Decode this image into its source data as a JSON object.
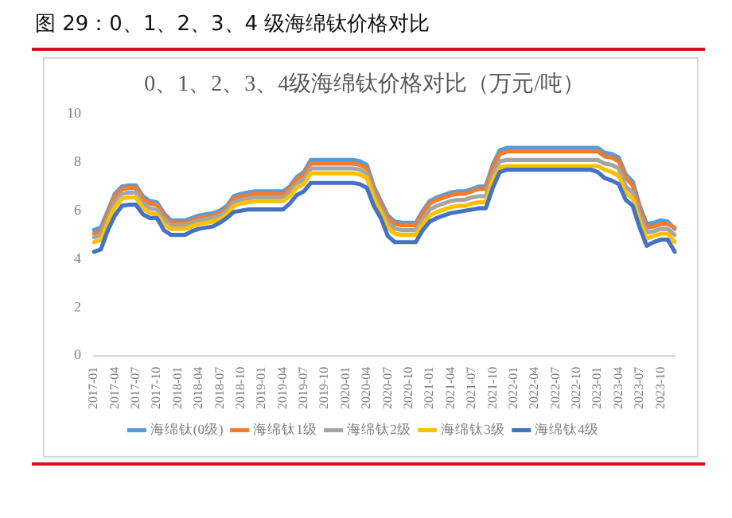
{
  "chart_data": {
    "type": "line",
    "title": "0、1、2、3、4级海绵钛价格对比（万元/吨）",
    "annotations": [
      "图 29：0、1、2、3、4 级海绵钛价格对比"
    ],
    "categories": [
      "2017-01",
      null,
      null,
      "2017-04",
      null,
      null,
      "2017-07",
      null,
      null,
      "2017-10",
      null,
      null,
      "2018-01",
      null,
      null,
      "2018-04",
      null,
      null,
      "2018-07",
      null,
      null,
      "2018-10",
      null,
      null,
      "2019-01",
      null,
      null,
      "2019-04",
      null,
      null,
      "2019-07",
      null,
      null,
      "2019-10",
      null,
      null,
      "2020-01",
      null,
      null,
      "2020-04",
      null,
      null,
      "2020-07",
      null,
      null,
      "2020-10",
      null,
      null,
      "2021-01",
      null,
      null,
      "2021-04",
      null,
      null,
      "2021-07",
      null,
      null,
      "2021-10",
      null,
      null,
      "2022-01",
      null,
      null,
      "2022-04",
      null,
      null,
      "2022-07",
      null,
      null,
      "2022-10",
      null,
      null,
      "2023-01",
      null,
      null,
      "2023-04",
      null,
      null,
      "2023-07",
      null,
      null,
      "2023-10",
      null,
      null
    ],
    "series": [
      {
        "name": "海绵钛(0级)",
        "color": "#5b9bd5",
        "values": [
          5.2,
          5.3,
          6.0,
          6.7,
          7.0,
          7.05,
          7.05,
          6.6,
          6.4,
          6.35,
          5.9,
          5.6,
          5.6,
          5.6,
          5.7,
          5.8,
          5.85,
          5.9,
          6.0,
          6.2,
          6.6,
          6.7,
          6.75,
          6.8,
          6.8,
          6.8,
          6.8,
          6.8,
          7.0,
          7.4,
          7.6,
          8.1,
          8.1,
          8.1,
          8.1,
          8.1,
          8.1,
          8.1,
          8.05,
          7.9,
          7.0,
          6.4,
          5.8,
          5.55,
          5.5,
          5.5,
          5.5,
          6.0,
          6.4,
          6.55,
          6.65,
          6.75,
          6.8,
          6.8,
          6.9,
          7.0,
          7.0,
          7.9,
          8.5,
          8.6,
          8.6,
          8.6,
          8.6,
          8.6,
          8.6,
          8.6,
          8.6,
          8.6,
          8.6,
          8.6,
          8.6,
          8.6,
          8.6,
          8.4,
          8.35,
          8.2,
          7.5,
          7.2,
          6.2,
          5.45,
          5.5,
          5.6,
          5.55,
          5.25
        ]
      },
      {
        "name": "海绵钛1级",
        "color": "#ed7d31",
        "values": [
          5.05,
          5.15,
          5.9,
          6.6,
          6.9,
          6.95,
          6.95,
          6.5,
          6.3,
          6.25,
          5.8,
          5.5,
          5.5,
          5.5,
          5.6,
          5.7,
          5.75,
          5.8,
          5.9,
          6.1,
          6.5,
          6.6,
          6.65,
          6.7,
          6.7,
          6.7,
          6.7,
          6.7,
          6.9,
          7.3,
          7.5,
          7.95,
          7.95,
          7.95,
          7.95,
          7.95,
          7.95,
          7.95,
          7.9,
          7.75,
          6.9,
          6.3,
          5.7,
          5.45,
          5.4,
          5.4,
          5.4,
          5.9,
          6.3,
          6.45,
          6.55,
          6.65,
          6.7,
          6.7,
          6.8,
          6.9,
          6.9,
          7.8,
          8.35,
          8.45,
          8.45,
          8.45,
          8.45,
          8.45,
          8.45,
          8.45,
          8.45,
          8.45,
          8.45,
          8.45,
          8.45,
          8.45,
          8.45,
          8.25,
          8.2,
          8.05,
          7.35,
          7.05,
          6.05,
          5.3,
          5.35,
          5.45,
          5.45,
          5.3
        ]
      },
      {
        "name": "海绵钛2级",
        "color": "#a5a5a5",
        "values": [
          4.9,
          5.0,
          5.7,
          6.4,
          6.7,
          6.75,
          6.75,
          6.3,
          6.1,
          6.05,
          5.65,
          5.4,
          5.4,
          5.4,
          5.5,
          5.6,
          5.65,
          5.7,
          5.8,
          6.0,
          6.35,
          6.45,
          6.5,
          6.55,
          6.55,
          6.55,
          6.55,
          6.55,
          6.75,
          7.1,
          7.3,
          7.75,
          7.75,
          7.75,
          7.75,
          7.75,
          7.75,
          7.75,
          7.7,
          7.55,
          6.7,
          6.1,
          5.5,
          5.25,
          5.2,
          5.2,
          5.2,
          5.65,
          6.05,
          6.2,
          6.3,
          6.4,
          6.45,
          6.45,
          6.55,
          6.6,
          6.6,
          7.5,
          8.05,
          8.1,
          8.1,
          8.1,
          8.1,
          8.1,
          8.1,
          8.1,
          8.1,
          8.1,
          8.1,
          8.1,
          8.1,
          8.1,
          8.1,
          7.95,
          7.9,
          7.75,
          7.0,
          6.75,
          5.8,
          5.1,
          5.15,
          5.25,
          5.25,
          5.0
        ]
      },
      {
        "name": "海绵钛3级",
        "color": "#ffc000",
        "values": [
          4.7,
          4.8,
          5.5,
          6.15,
          6.5,
          6.55,
          6.55,
          6.1,
          5.9,
          5.85,
          5.45,
          5.25,
          5.25,
          5.25,
          5.35,
          5.45,
          5.5,
          5.55,
          5.65,
          5.85,
          6.2,
          6.3,
          6.35,
          6.4,
          6.4,
          6.4,
          6.4,
          6.4,
          6.6,
          6.95,
          7.1,
          7.55,
          7.55,
          7.55,
          7.55,
          7.55,
          7.55,
          7.55,
          7.5,
          7.35,
          6.5,
          5.95,
          5.3,
          5.05,
          5.0,
          5.0,
          5.0,
          5.45,
          5.8,
          5.95,
          6.05,
          6.15,
          6.2,
          6.2,
          6.3,
          6.35,
          6.35,
          7.25,
          7.8,
          7.85,
          7.85,
          7.85,
          7.85,
          7.85,
          7.85,
          7.85,
          7.85,
          7.85,
          7.85,
          7.85,
          7.85,
          7.85,
          7.85,
          7.7,
          7.6,
          7.45,
          6.75,
          6.5,
          5.55,
          4.85,
          4.95,
          5.05,
          5.05,
          4.7
        ]
      },
      {
        "name": "海绵钛4级",
        "color": "#4472c4",
        "values": [
          4.3,
          4.4,
          5.2,
          5.8,
          6.2,
          6.25,
          6.25,
          5.85,
          5.7,
          5.7,
          5.2,
          5.0,
          5.0,
          5.0,
          5.15,
          5.25,
          5.3,
          5.35,
          5.5,
          5.7,
          5.95,
          6.0,
          6.05,
          6.05,
          6.05,
          6.05,
          6.05,
          6.05,
          6.3,
          6.65,
          6.8,
          7.15,
          7.15,
          7.15,
          7.15,
          7.15,
          7.15,
          7.15,
          7.1,
          6.95,
          6.2,
          5.7,
          4.95,
          4.7,
          4.7,
          4.7,
          4.7,
          5.2,
          5.55,
          5.7,
          5.8,
          5.9,
          5.95,
          6.0,
          6.05,
          6.1,
          6.1,
          6.95,
          7.6,
          7.7,
          7.7,
          7.7,
          7.7,
          7.7,
          7.7,
          7.7,
          7.7,
          7.7,
          7.7,
          7.7,
          7.7,
          7.7,
          7.6,
          7.35,
          7.25,
          7.1,
          6.45,
          6.2,
          5.3,
          4.55,
          4.7,
          4.8,
          4.8,
          4.3
        ]
      }
    ],
    "ylim": [
      0,
      10
    ],
    "yticks": [
      0,
      2,
      4,
      6,
      8,
      10
    ],
    "grid": false,
    "legend": "bottom",
    "marker": "none",
    "line_style": "solid"
  }
}
